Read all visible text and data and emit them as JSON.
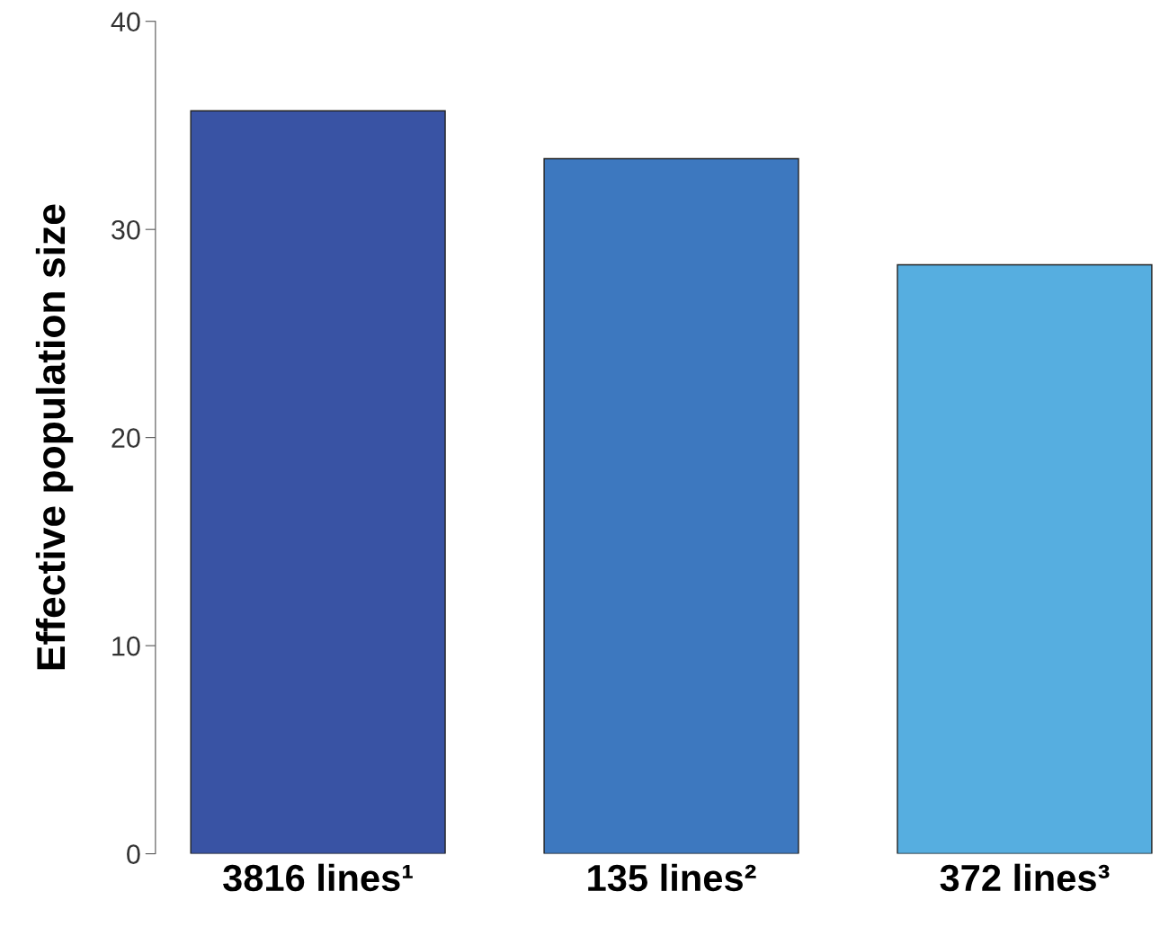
{
  "chart_data": {
    "type": "bar",
    "ylabel": "Effective population size",
    "categories": [
      "3816 lines¹",
      "135 lines²",
      "372 lines³"
    ],
    "values": [
      35.7,
      33.4,
      28.3
    ],
    "colors": [
      "#3953a4",
      "#3d78bf",
      "#56aee0"
    ],
    "ylim": [
      0,
      40
    ],
    "yticks": [
      0,
      10,
      20,
      30,
      40
    ],
    "grid": false
  }
}
